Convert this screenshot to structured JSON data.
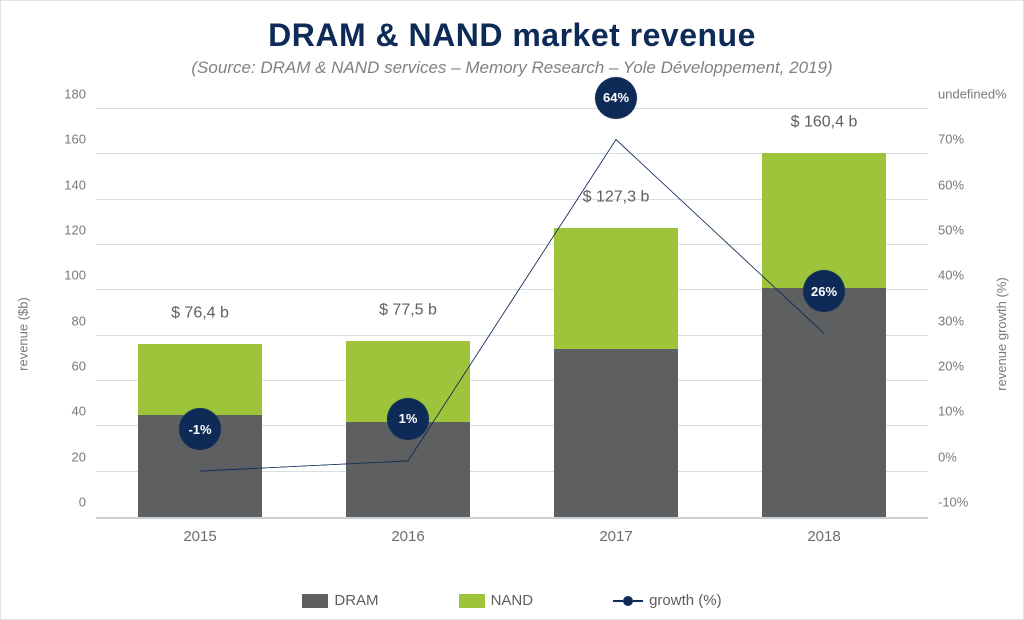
{
  "title": "DRAM & NAND market revenue",
  "subtitle": "(Source: DRAM & NAND services – Memory Research – Yole Développement, 2019)",
  "title_color": "#0e2a56",
  "title_fontsize": 32,
  "subtitle_color": "#808186",
  "subtitle_fontsize": 17,
  "chart": {
    "type": "stacked-bar-with-line",
    "background_color": "#ffffff",
    "grid_color": "#d8dde1",
    "axis_color": "#c9cfd4",
    "bar_width_pct": 15,
    "categories": [
      "2015",
      "2016",
      "2017",
      "2018"
    ],
    "left_axis": {
      "label": "revenue ($b)",
      "min": 0,
      "max": 180,
      "tick_step": 20,
      "ticks": [
        0,
        20,
        40,
        60,
        80,
        100,
        120,
        140,
        160,
        180
      ]
    },
    "right_axis": {
      "label": "revenue growth (%)",
      "min": -10,
      "max": 70,
      "ticks": [
        -10,
        0,
        10,
        20,
        30,
        40,
        50,
        60,
        70
      ]
    },
    "series": {
      "dram": {
        "label": "DRAM",
        "color": "#5e5f61",
        "values": [
          45,
          42,
          74,
          101
        ]
      },
      "nand": {
        "label": "NAND",
        "color": "#9ec43c",
        "values": [
          31.4,
          35.5,
          53.3,
          59.4
        ]
      }
    },
    "totals_labels": [
      "$ 76,4 b",
      "$ 77,5 b",
      "$ 127,3 b",
      "$ 160,4 b"
    ],
    "totals_values": [
      76.4,
      77.5,
      127.3,
      160.4
    ],
    "growth_line": {
      "label": "growth (%)",
      "color": "#0e2a56",
      "point_fill": "#0e2a56",
      "point_text_color": "#ffffff",
      "line_width": 2.5,
      "values_pct": [
        -1,
        1,
        64,
        26
      ],
      "point_labels": [
        "-1%",
        "1%",
        "64%",
        "26%"
      ]
    },
    "text_color": "#606060",
    "tick_fontsize": 13,
    "xtick_fontsize": 15
  },
  "legend": {
    "dram": "DRAM",
    "nand": "NAND",
    "growth": "growth (%)"
  }
}
